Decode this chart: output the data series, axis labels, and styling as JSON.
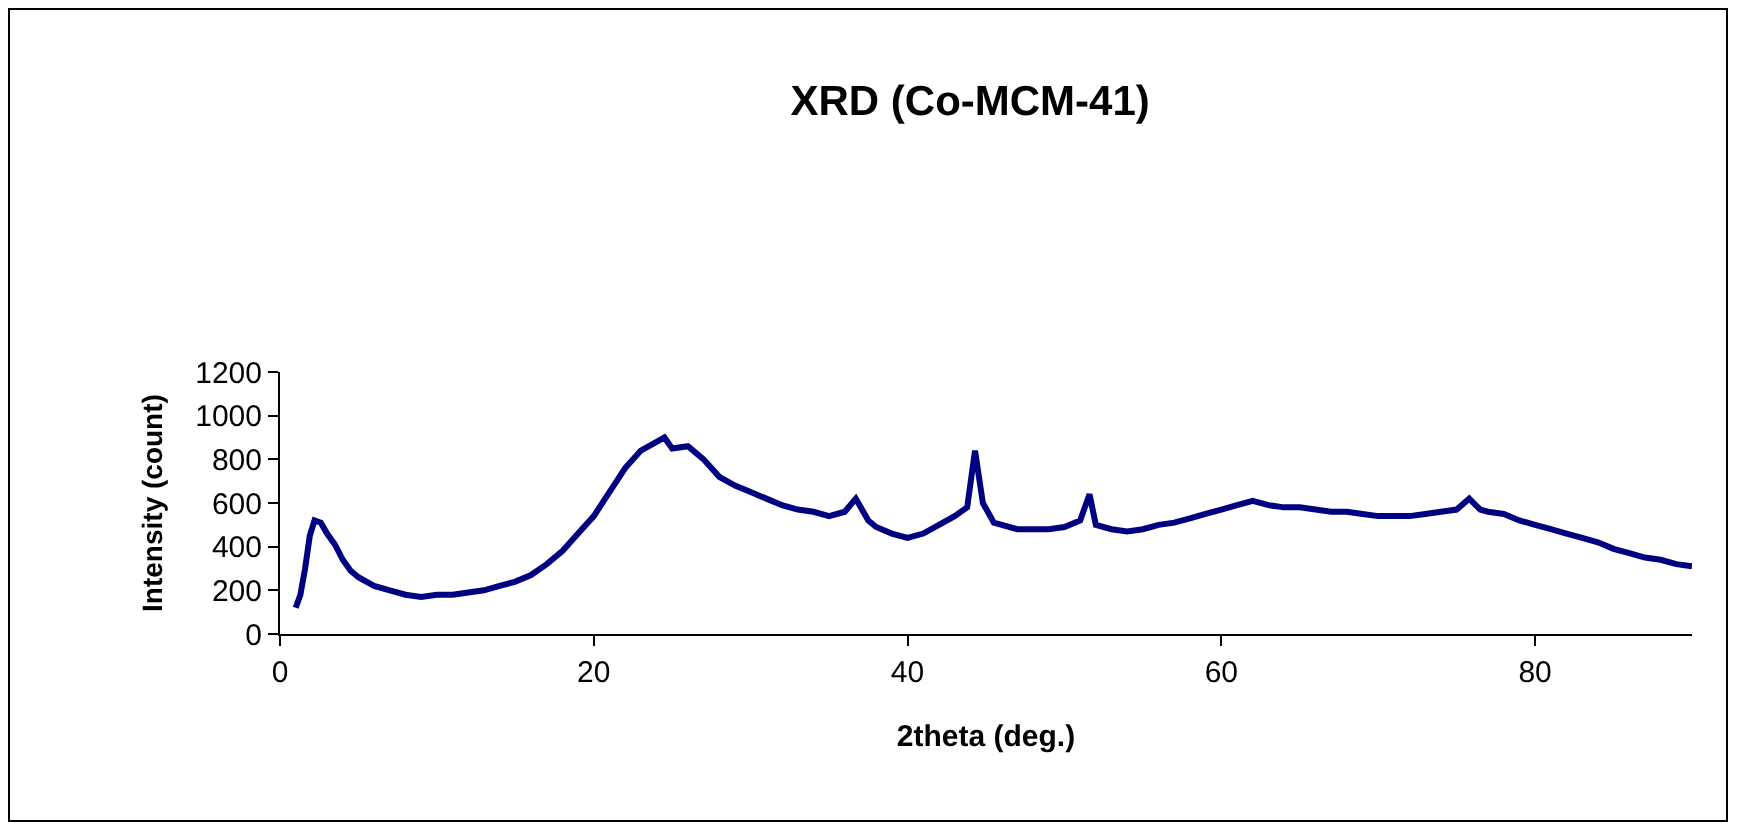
{
  "chart_data": {
    "type": "line",
    "title": "XRD (Co-MCM-41)",
    "xlabel": "2theta (deg.)",
    "ylabel": "Intensity (count)",
    "x": [
      1.0,
      1.3,
      1.6,
      1.9,
      2.2,
      2.6,
      3.0,
      3.5,
      4.0,
      4.5,
      5,
      5.5,
      6,
      7,
      8,
      9,
      10,
      11,
      12,
      13,
      14,
      15,
      16,
      17,
      18,
      19,
      20,
      21,
      22,
      23,
      24,
      24.5,
      25,
      26,
      27,
      28,
      29,
      30,
      31,
      32,
      33,
      34,
      35,
      36,
      36.7,
      37.5,
      38,
      39,
      40,
      41,
      42,
      43,
      43.8,
      44.3,
      44.8,
      45.5,
      46,
      47,
      48,
      49,
      50,
      51,
      51.6,
      52,
      53,
      54,
      55,
      56,
      57,
      58,
      59,
      60,
      61,
      62,
      63,
      64,
      65,
      66,
      67,
      68,
      69,
      70,
      71,
      72,
      73,
      74,
      75,
      75.8,
      76.5,
      77,
      78,
      79,
      80,
      81,
      82,
      83,
      84,
      85,
      86,
      87,
      88,
      89,
      90
    ],
    "series": [
      {
        "color": "#000080",
        "values": [
          120,
          180,
          300,
          450,
          520,
          510,
          460,
          410,
          340,
          290,
          260,
          240,
          220,
          200,
          180,
          170,
          180,
          180,
          190,
          200,
          220,
          240,
          270,
          320,
          380,
          460,
          540,
          650,
          760,
          840,
          880,
          900,
          850,
          860,
          800,
          720,
          680,
          650,
          620,
          590,
          570,
          560,
          540,
          560,
          620,
          520,
          490,
          460,
          440,
          460,
          500,
          540,
          580,
          840,
          600,
          510,
          500,
          480,
          480,
          480,
          490,
          520,
          640,
          500,
          480,
          470,
          480,
          500,
          510,
          530,
          550,
          570,
          590,
          610,
          590,
          580,
          580,
          570,
          560,
          560,
          550,
          540,
          540,
          540,
          550,
          560,
          570,
          620,
          570,
          560,
          550,
          520,
          500,
          480,
          460,
          440,
          420,
          390,
          370,
          350,
          340,
          320,
          310
        ]
      }
    ],
    "xlim": [
      0,
      90
    ],
    "xticks": [
      0,
      20,
      40,
      60,
      80
    ],
    "ylim": [
      0,
      1200
    ],
    "yticks": [
      0,
      200,
      400,
      600,
      800,
      1000,
      1200
    ],
    "grid": false,
    "marker": "none",
    "line_style": "solid"
  }
}
